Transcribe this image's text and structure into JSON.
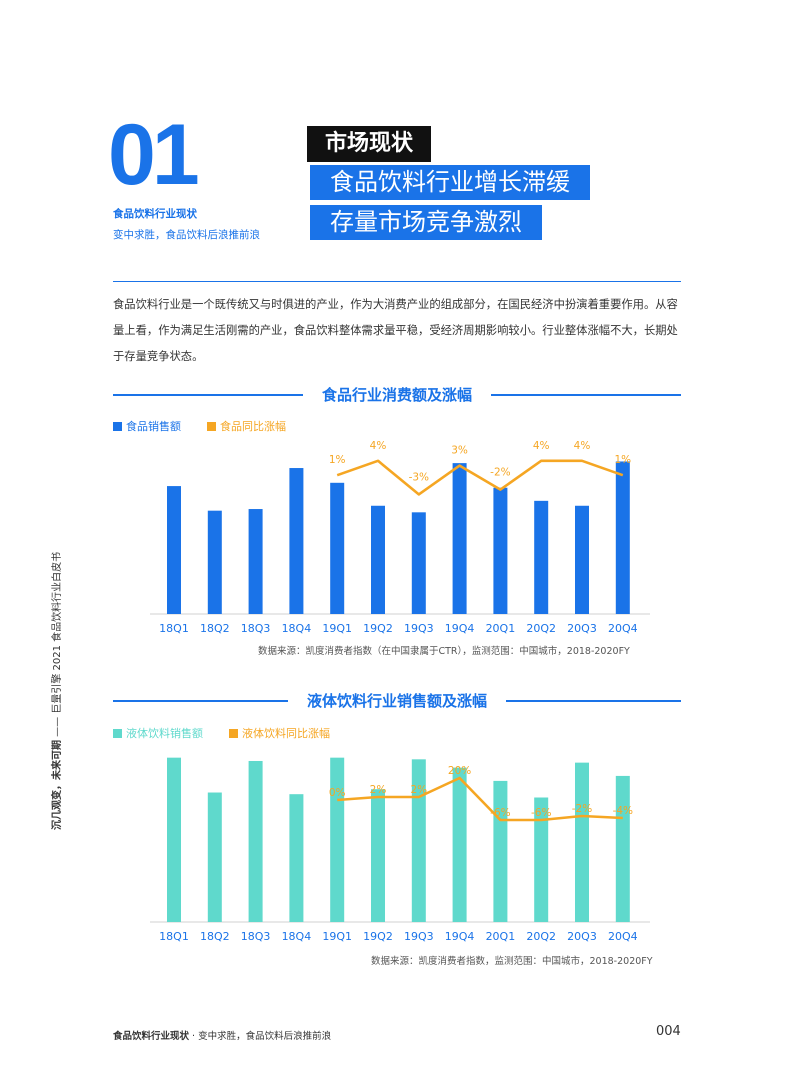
{
  "header": {
    "number": "01",
    "section_title": "食品饮料行业现状",
    "section_subtitle": "变中求胜，食品饮料后浪推前浪",
    "badge": "市场现状",
    "headline_1": "食品饮料行业增长滞缓",
    "headline_2": "存量市场竞争激烈"
  },
  "intro": "食品饮料行业是一个既传统又与时俱进的产业，作为大消费产业的组成部分，在国民经济中扮演着重要作用。从容量上看，作为满足生活刚需的产业，食品饮料整体需求量平稳，受经济周期影响较小。行业整体涨幅不大，长期处于存量竞争状态。",
  "side": {
    "text_bold": "沉几观变，未来可期",
    "text_rest": "—— 巨量引擎 2021 食品饮料行业白皮书"
  },
  "chart_data": [
    {
      "type": "bar",
      "title": "食品行业消费额及涨幅",
      "categories": [
        "18Q1",
        "18Q2",
        "18Q3",
        "18Q4",
        "19Q1",
        "19Q2",
        "19Q3",
        "19Q4",
        "20Q1",
        "20Q2",
        "20Q3",
        "20Q4"
      ],
      "series": [
        {
          "name": "食品销售额",
          "kind": "bar",
          "color": "#1a73e8",
          "values": [
            0.78,
            0.63,
            0.64,
            0.89,
            0.8,
            0.66,
            0.62,
            0.92,
            0.77,
            0.69,
            0.66,
            0.93
          ]
        },
        {
          "name": "食品同比涨幅",
          "kind": "line",
          "color": "#f5a623",
          "values": [
            null,
            null,
            null,
            null,
            1,
            4,
            -3,
            3,
            -2,
            4,
            4,
            1
          ],
          "labels": [
            null,
            null,
            null,
            null,
            "1%",
            "4%",
            "-3%",
            "3%",
            "-2%",
            "4%",
            "4%",
            "1%"
          ]
        }
      ],
      "source": "数据来源：凯度消费者指数（在中国隶属于CTR），监测范围：中国城市，2018-2020FY"
    },
    {
      "type": "bar",
      "title": "液体饮料行业销售额及涨幅",
      "categories": [
        "18Q1",
        "18Q2",
        "18Q3",
        "18Q4",
        "19Q1",
        "19Q2",
        "19Q3",
        "19Q4",
        "20Q1",
        "20Q2",
        "20Q3",
        "20Q4"
      ],
      "series": [
        {
          "name": "液体饮料销售额",
          "kind": "bar",
          "color": "#5fd9cc",
          "values": [
            0.99,
            0.78,
            0.97,
            0.77,
            0.99,
            0.8,
            0.98,
            0.93,
            0.85,
            0.75,
            0.96,
            0.88
          ]
        },
        {
          "name": "液体饮料同比涨幅",
          "kind": "line",
          "color": "#f5a623",
          "values": [
            null,
            null,
            null,
            null,
            0,
            2,
            2,
            20,
            -6,
            -6,
            -2,
            -4
          ],
          "labels": [
            null,
            null,
            null,
            null,
            "0%",
            "2%",
            "2%",
            "20%",
            "-6%",
            "-6%",
            "-2%",
            "-4%"
          ]
        }
      ],
      "source": "数据来源：凯度消费者指数，监测范围：中国城市，2018-2020FY"
    }
  ],
  "footer": {
    "title": "食品饮料行业现状",
    "subtitle": "变中求胜，食品饮料后浪推前浪",
    "page": "004"
  }
}
